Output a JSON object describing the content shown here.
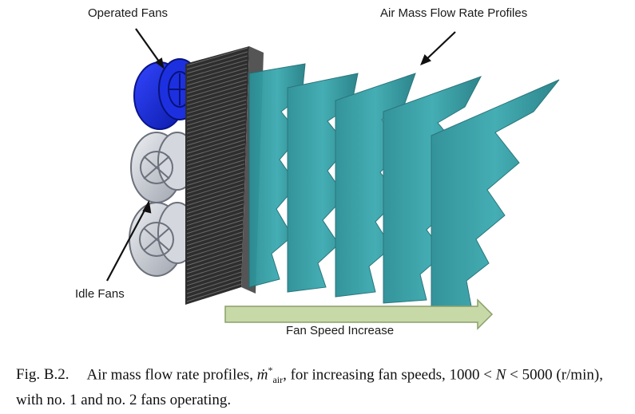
{
  "labels": {
    "operated_fans": "Operated Fans",
    "profiles": "Air Mass Flow Rate Profiles",
    "idle_fans": "Idle Fans",
    "fan_speed": "Fan Speed Increase"
  },
  "caption": {
    "label": "Fig. B.2.",
    "text_part1": "Air mass flow rate profiles, ",
    "symbol": "ṁ",
    "symbol_sup": "*",
    "symbol_sub": "air",
    "text_part2": ", for increasing fan speeds, 1000 < ",
    "var_n": "N",
    "text_part3": " < 5000 (r/min), with no. 1 and no. 2 fans operating."
  },
  "colors": {
    "operated_fan": "#1a2fd6",
    "idle_fan": "#c9cdd6",
    "profile": "#2f9aa0",
    "grille": "#3a3a3a",
    "arrow": "#c8d9a8"
  },
  "icons": {
    "operated": "fan-operated-icon",
    "idle": "fan-idle-icon"
  }
}
